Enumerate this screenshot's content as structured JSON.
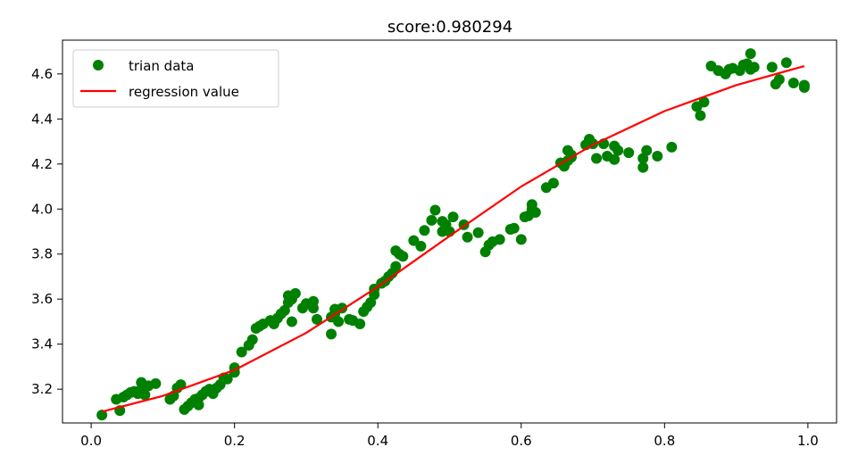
{
  "chart_data": {
    "type": "scatter",
    "title": "score:0.980294",
    "xlabel": "",
    "ylabel": "",
    "xlim": [
      -0.04,
      1.04
    ],
    "ylim": [
      3.05,
      4.75
    ],
    "xticks": [
      0.0,
      0.2,
      0.4,
      0.6,
      0.8,
      1.0
    ],
    "xtick_labels": [
      "0.0",
      "0.2",
      "0.4",
      "0.6",
      "0.8",
      "1.0"
    ],
    "yticks": [
      3.2,
      3.4,
      3.6,
      3.8,
      4.0,
      4.2,
      4.4,
      4.6
    ],
    "ytick_labels": [
      "3.2",
      "3.4",
      "3.6",
      "3.8",
      "4.0",
      "4.2",
      "4.4",
      "4.6"
    ],
    "grid": false,
    "legend_position": "top-left",
    "series": [
      {
        "name": "trian data",
        "kind": "scatter",
        "color": "#008000",
        "points": [
          [
            0.015,
            3.085
          ],
          [
            0.035,
            3.155
          ],
          [
            0.04,
            3.105
          ],
          [
            0.045,
            3.165
          ],
          [
            0.05,
            3.175
          ],
          [
            0.055,
            3.185
          ],
          [
            0.06,
            3.19
          ],
          [
            0.065,
            3.18
          ],
          [
            0.07,
            3.2
          ],
          [
            0.07,
            3.23
          ],
          [
            0.075,
            3.175
          ],
          [
            0.08,
            3.215
          ],
          [
            0.09,
            3.225
          ],
          [
            0.11,
            3.155
          ],
          [
            0.115,
            3.17
          ],
          [
            0.12,
            3.205
          ],
          [
            0.125,
            3.22
          ],
          [
            0.13,
            3.11
          ],
          [
            0.135,
            3.125
          ],
          [
            0.14,
            3.14
          ],
          [
            0.145,
            3.155
          ],
          [
            0.15,
            3.16
          ],
          [
            0.15,
            3.13
          ],
          [
            0.155,
            3.175
          ],
          [
            0.16,
            3.19
          ],
          [
            0.165,
            3.2
          ],
          [
            0.17,
            3.18
          ],
          [
            0.175,
            3.205
          ],
          [
            0.18,
            3.22
          ],
          [
            0.185,
            3.25
          ],
          [
            0.19,
            3.245
          ],
          [
            0.2,
            3.275
          ],
          [
            0.2,
            3.295
          ],
          [
            0.21,
            3.365
          ],
          [
            0.22,
            3.395
          ],
          [
            0.225,
            3.42
          ],
          [
            0.23,
            3.47
          ],
          [
            0.235,
            3.48
          ],
          [
            0.24,
            3.49
          ],
          [
            0.25,
            3.505
          ],
          [
            0.255,
            3.49
          ],
          [
            0.26,
            3.515
          ],
          [
            0.265,
            3.535
          ],
          [
            0.27,
            3.55
          ],
          [
            0.275,
            3.585
          ],
          [
            0.275,
            3.615
          ],
          [
            0.28,
            3.6
          ],
          [
            0.28,
            3.5
          ],
          [
            0.285,
            3.625
          ],
          [
            0.295,
            3.56
          ],
          [
            0.3,
            3.58
          ],
          [
            0.31,
            3.59
          ],
          [
            0.31,
            3.56
          ],
          [
            0.315,
            3.51
          ],
          [
            0.335,
            3.445
          ],
          [
            0.335,
            3.52
          ],
          [
            0.34,
            3.535
          ],
          [
            0.345,
            3.5
          ],
          [
            0.34,
            3.555
          ],
          [
            0.35,
            3.56
          ],
          [
            0.36,
            3.51
          ],
          [
            0.365,
            3.505
          ],
          [
            0.375,
            3.49
          ],
          [
            0.38,
            3.545
          ],
          [
            0.385,
            3.565
          ],
          [
            0.39,
            3.585
          ],
          [
            0.395,
            3.62
          ],
          [
            0.395,
            3.645
          ],
          [
            0.405,
            3.67
          ],
          [
            0.41,
            3.68
          ],
          [
            0.415,
            3.7
          ],
          [
            0.42,
            3.715
          ],
          [
            0.425,
            3.745
          ],
          [
            0.425,
            3.815
          ],
          [
            0.43,
            3.8
          ],
          [
            0.435,
            3.79
          ],
          [
            0.45,
            3.86
          ],
          [
            0.46,
            3.835
          ],
          [
            0.465,
            3.905
          ],
          [
            0.475,
            3.95
          ],
          [
            0.48,
            3.995
          ],
          [
            0.49,
            3.9
          ],
          [
            0.49,
            3.945
          ],
          [
            0.495,
            3.93
          ],
          [
            0.5,
            3.9
          ],
          [
            0.505,
            3.965
          ],
          [
            0.52,
            3.93
          ],
          [
            0.525,
            3.875
          ],
          [
            0.54,
            3.895
          ],
          [
            0.55,
            3.81
          ],
          [
            0.555,
            3.84
          ],
          [
            0.56,
            3.855
          ],
          [
            0.57,
            3.865
          ],
          [
            0.585,
            3.91
          ],
          [
            0.59,
            3.915
          ],
          [
            0.6,
            3.865
          ],
          [
            0.605,
            3.965
          ],
          [
            0.61,
            3.97
          ],
          [
            0.615,
            4.0
          ],
          [
            0.615,
            4.02
          ],
          [
            0.62,
            3.985
          ],
          [
            0.635,
            4.095
          ],
          [
            0.645,
            4.115
          ],
          [
            0.655,
            4.205
          ],
          [
            0.66,
            4.19
          ],
          [
            0.665,
            4.26
          ],
          [
            0.665,
            4.215
          ],
          [
            0.67,
            4.24
          ],
          [
            0.67,
            4.23
          ],
          [
            0.69,
            4.285
          ],
          [
            0.695,
            4.31
          ],
          [
            0.7,
            4.29
          ],
          [
            0.705,
            4.225
          ],
          [
            0.715,
            4.29
          ],
          [
            0.72,
            4.235
          ],
          [
            0.73,
            4.28
          ],
          [
            0.73,
            4.22
          ],
          [
            0.735,
            4.26
          ],
          [
            0.75,
            4.25
          ],
          [
            0.77,
            4.185
          ],
          [
            0.77,
            4.225
          ],
          [
            0.775,
            4.26
          ],
          [
            0.79,
            4.235
          ],
          [
            0.81,
            4.275
          ],
          [
            0.845,
            4.455
          ],
          [
            0.85,
            4.415
          ],
          [
            0.855,
            4.475
          ],
          [
            0.865,
            4.635
          ],
          [
            0.875,
            4.615
          ],
          [
            0.885,
            4.6
          ],
          [
            0.89,
            4.62
          ],
          [
            0.895,
            4.625
          ],
          [
            0.905,
            4.615
          ],
          [
            0.91,
            4.64
          ],
          [
            0.915,
            4.645
          ],
          [
            0.92,
            4.69
          ],
          [
            0.92,
            4.62
          ],
          [
            0.925,
            4.63
          ],
          [
            0.95,
            4.63
          ],
          [
            0.955,
            4.555
          ],
          [
            0.96,
            4.575
          ],
          [
            0.97,
            4.65
          ],
          [
            0.98,
            4.56
          ],
          [
            0.995,
            4.54
          ],
          [
            0.995,
            4.55
          ]
        ]
      },
      {
        "name": "regression value",
        "kind": "line",
        "color": "#ff0000",
        "points": [
          [
            0.015,
            3.1
          ],
          [
            0.1,
            3.17
          ],
          [
            0.2,
            3.285
          ],
          [
            0.3,
            3.45
          ],
          [
            0.4,
            3.655
          ],
          [
            0.5,
            3.88
          ],
          [
            0.6,
            4.1
          ],
          [
            0.7,
            4.285
          ],
          [
            0.8,
            4.435
          ],
          [
            0.9,
            4.55
          ],
          [
            0.995,
            4.635
          ]
        ]
      }
    ]
  }
}
